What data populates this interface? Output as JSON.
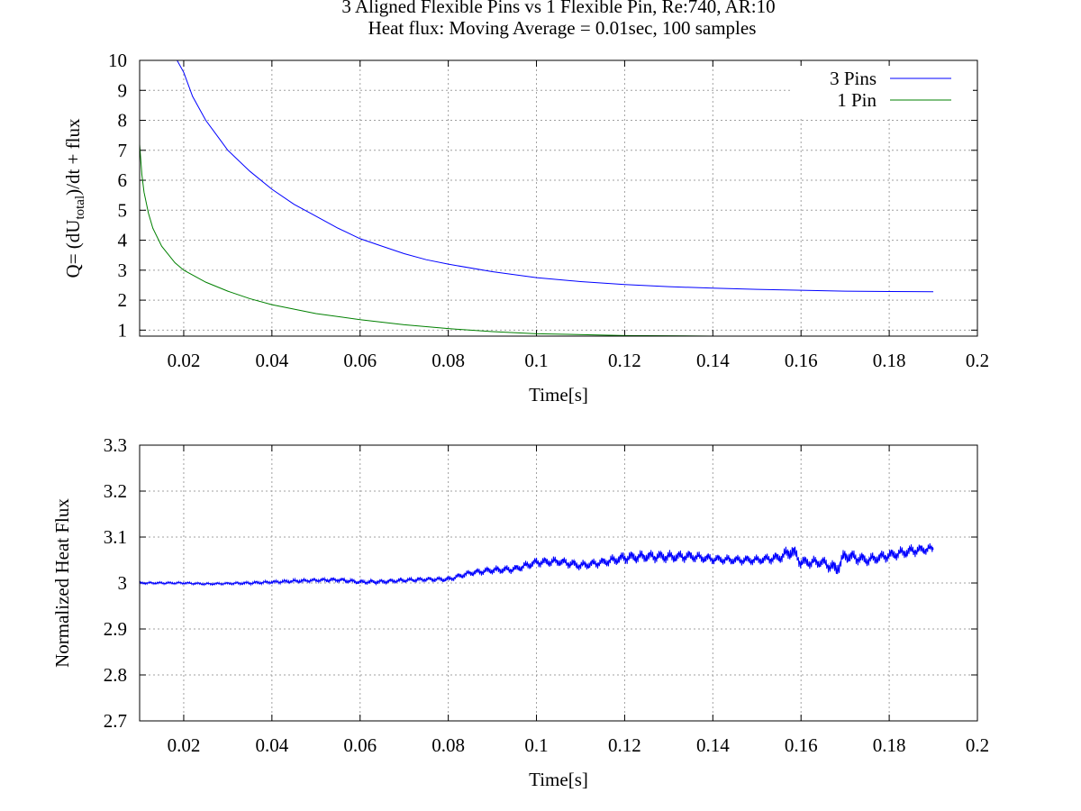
{
  "title_line1": "3 Aligned Flexible Pins vs 1 Flexible Pin, Re:740, AR:10",
  "title_line2": "Heat flux: Moving Average = 0.01sec, 100 samples",
  "chart_data": [
    {
      "type": "line",
      "xlabel": "Time[s]",
      "ylabel_parts": [
        "Q= (dU",
        "total",
        ")/dt + flux"
      ],
      "xlim": [
        0.01,
        0.2
      ],
      "ylim": [
        0.8,
        10
      ],
      "xticks": [
        0.02,
        0.04,
        0.06,
        0.08,
        0.1,
        0.12,
        0.14,
        0.16,
        0.18,
        0.2
      ],
      "xtick_labels": [
        "0.02",
        "0.04",
        "0.06",
        "0.08",
        "0.1",
        "0.12",
        "0.14",
        "0.16",
        "0.18",
        "0.2"
      ],
      "yticks": [
        1,
        2,
        3,
        4,
        5,
        6,
        7,
        8,
        9,
        10
      ],
      "ytick_labels": [
        "1",
        "2",
        "3",
        "4",
        "5",
        "6",
        "7",
        "8",
        "9",
        "10"
      ],
      "grid": true,
      "legend_position": "top-right",
      "series": [
        {
          "name": "3 Pins",
          "color": "#0000ff",
          "x": [
            0.0185,
            0.02,
            0.022,
            0.025,
            0.028,
            0.03,
            0.035,
            0.04,
            0.045,
            0.05,
            0.055,
            0.06,
            0.065,
            0.07,
            0.075,
            0.08,
            0.09,
            0.1,
            0.11,
            0.12,
            0.13,
            0.14,
            0.15,
            0.16,
            0.17,
            0.18,
            0.19
          ],
          "y": [
            10.0,
            9.6,
            8.8,
            8.0,
            7.4,
            7.0,
            6.3,
            5.7,
            5.2,
            4.8,
            4.4,
            4.05,
            3.8,
            3.55,
            3.35,
            3.2,
            2.95,
            2.75,
            2.62,
            2.52,
            2.45,
            2.4,
            2.36,
            2.33,
            2.3,
            2.29,
            2.28
          ]
        },
        {
          "name": "1 Pin",
          "color": "#008000",
          "x": [
            0.01,
            0.0105,
            0.011,
            0.012,
            0.013,
            0.015,
            0.018,
            0.02,
            0.025,
            0.03,
            0.035,
            0.04,
            0.05,
            0.06,
            0.07,
            0.08,
            0.09,
            0.1,
            0.12,
            0.14,
            0.16,
            0.18,
            0.2
          ],
          "y": [
            7.2,
            6.2,
            5.6,
            4.9,
            4.4,
            3.8,
            3.25,
            3.0,
            2.6,
            2.3,
            2.05,
            1.85,
            1.55,
            1.35,
            1.18,
            1.05,
            0.95,
            0.88,
            0.82,
            0.8,
            0.79,
            0.78,
            0.78
          ]
        }
      ]
    },
    {
      "type": "line",
      "xlabel": "Time[s]",
      "ylabel": "Normalized Heat Flux",
      "xlim": [
        0.01,
        0.2
      ],
      "ylim": [
        2.7,
        3.3
      ],
      "xticks": [
        0.02,
        0.04,
        0.06,
        0.08,
        0.1,
        0.12,
        0.14,
        0.16,
        0.18,
        0.2
      ],
      "xtick_labels": [
        "0.02",
        "0.04",
        "0.06",
        "0.08",
        "0.1",
        "0.12",
        "0.14",
        "0.16",
        "0.18",
        "0.2"
      ],
      "yticks": [
        2.7,
        2.8,
        2.9,
        3.0,
        3.1,
        3.2,
        3.3
      ],
      "ytick_labels": [
        "2.7",
        "2.8",
        "2.9",
        "3",
        "3.1",
        "3.2",
        "3.3"
      ],
      "grid": true,
      "series": [
        {
          "color": "#0000ff",
          "x": [
            0.01,
            0.015,
            0.02,
            0.025,
            0.03,
            0.035,
            0.04,
            0.045,
            0.05,
            0.055,
            0.06,
            0.065,
            0.07,
            0.075,
            0.08,
            0.085,
            0.09,
            0.095,
            0.1,
            0.105,
            0.11,
            0.115,
            0.12,
            0.125,
            0.13,
            0.135,
            0.14,
            0.145,
            0.15,
            0.155,
            0.158,
            0.16,
            0.165,
            0.168,
            0.17,
            0.175,
            0.18,
            0.185,
            0.19
          ],
          "y": [
            3.0,
            3.0,
            3.0,
            2.998,
            2.999,
            3.0,
            3.002,
            3.004,
            3.006,
            3.007,
            3.002,
            3.003,
            3.006,
            3.008,
            3.008,
            3.022,
            3.028,
            3.03,
            3.045,
            3.047,
            3.038,
            3.045,
            3.055,
            3.058,
            3.057,
            3.058,
            3.052,
            3.05,
            3.05,
            3.055,
            3.07,
            3.045,
            3.045,
            3.03,
            3.06,
            3.05,
            3.06,
            3.07,
            3.075
          ],
          "noise_amplitude": [
            0.003,
            0.003,
            0.003,
            0.003,
            0.003,
            0.004,
            0.004,
            0.005,
            0.005,
            0.006,
            0.006,
            0.006,
            0.006,
            0.006,
            0.007,
            0.008,
            0.01,
            0.01,
            0.012,
            0.012,
            0.012,
            0.012,
            0.015,
            0.015,
            0.015,
            0.014,
            0.012,
            0.012,
            0.012,
            0.014,
            0.02,
            0.016,
            0.014,
            0.02,
            0.018,
            0.015,
            0.015,
            0.015,
            0.012
          ]
        }
      ]
    }
  ]
}
